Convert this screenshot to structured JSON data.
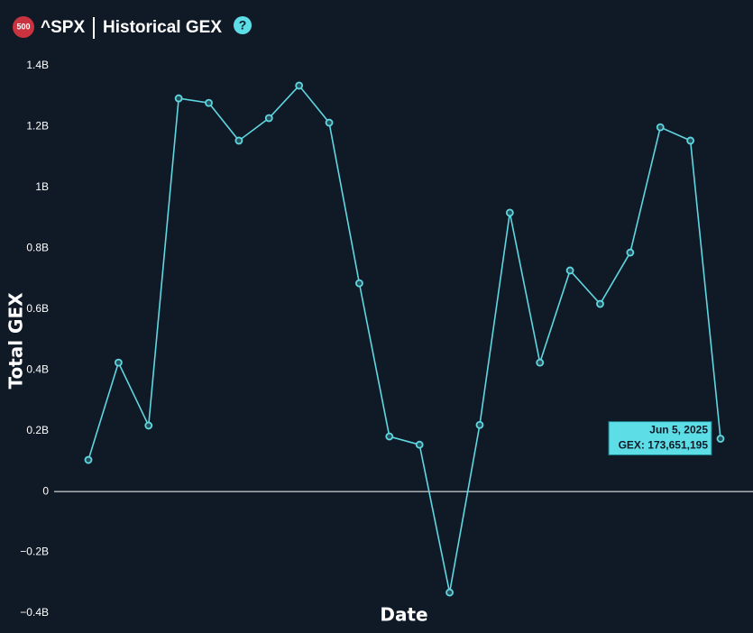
{
  "header": {
    "badge": "500",
    "ticker": "^SPX"
  },
  "chart_data": {
    "type": "line",
    "title": "Historical GEX",
    "x_label": "Date",
    "y_label": "Total GEX",
    "categories": [
      null,
      null,
      null,
      null,
      null,
      null,
      null,
      null,
      null,
      null,
      null,
      null,
      null,
      null,
      null,
      null,
      null,
      null,
      null,
      null,
      null,
      null
    ],
    "series": [
      {
        "name": "GEX",
        "color": "#5fd6e0",
        "values": [
          104000000,
          424000000,
          217000000,
          1293000000,
          1278000000,
          1154000000,
          1228000000,
          1335000000,
          1213000000,
          685000000,
          181000000,
          154000000,
          -332000000,
          219000000,
          917000000,
          424000000,
          727000000,
          617000000,
          786000000,
          1198000000,
          1154000000,
          173651195
        ]
      }
    ],
    "ylim": [
      -400000000,
      1400000000
    ],
    "yticks": [
      {
        "value": -400000000,
        "label": "−0.4B"
      },
      {
        "value": -200000000,
        "label": "−0.2B"
      },
      0,
      {
        "value": 200000000,
        "label": "0.2B"
      },
      {
        "value": 400000000,
        "label": "0.4B"
      },
      {
        "value": 600000000,
        "label": "0.6B"
      },
      {
        "value": 800000000,
        "label": "0.8B"
      },
      {
        "value": 1000000000,
        "label": "1B"
      },
      {
        "value": 1200000000,
        "label": "1.2B"
      },
      {
        "value": 1400000000,
        "label": "1.4B"
      }
    ],
    "zero_line": true,
    "tooltip": {
      "date": "Jun 5, 2025",
      "text": "GEX: 173,651,195"
    }
  }
}
